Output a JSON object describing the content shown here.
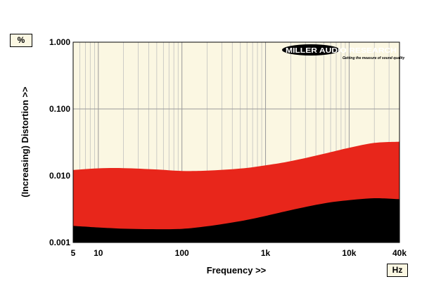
{
  "chart_data": {
    "type": "area",
    "xlabel": "Frequency >>",
    "ylabel": "(Increasing) Distortion >>",
    "y_unit": "%",
    "x_unit": "Hz",
    "x_scale": "log",
    "y_scale": "log",
    "xlim": [
      5,
      40000
    ],
    "ylim": [
      0.001,
      1.0
    ],
    "x_tick_labels": [
      {
        "value": 5,
        "label": "5"
      },
      {
        "value": 10,
        "label": "10"
      },
      {
        "value": 100,
        "label": "100"
      },
      {
        "value": 1000,
        "label": "1k"
      },
      {
        "value": 10000,
        "label": "10k"
      },
      {
        "value": 40000,
        "label": "40k"
      }
    ],
    "y_tick_labels": [
      {
        "value": 1.0,
        "label": "1.000"
      },
      {
        "value": 0.1,
        "label": "0.100"
      },
      {
        "value": 0.01,
        "label": "0.010"
      },
      {
        "value": 0.001,
        "label": "0.001"
      }
    ],
    "grid": true,
    "x": [
      5,
      10,
      20,
      50,
      100,
      200,
      500,
      1000,
      2000,
      5000,
      10000,
      20000,
      40000
    ],
    "series": [
      {
        "color": "#e8261b",
        "values": [
          0.0122,
          0.0129,
          0.013,
          0.0124,
          0.0118,
          0.0119,
          0.0128,
          0.0143,
          0.0165,
          0.0213,
          0.0262,
          0.031,
          0.0323
        ]
      },
      {
        "color": "#000000",
        "values": [
          0.00177,
          0.00168,
          0.00161,
          0.00158,
          0.0016,
          0.00175,
          0.00209,
          0.0025,
          0.00305,
          0.00385,
          0.0043,
          0.0046,
          0.00445
        ]
      }
    ]
  },
  "logo": {
    "name": "MILLER AUDIO RESEARCH",
    "tagline": "Getting the measure of sound quality"
  },
  "colors": {
    "plot_background": "#fbf7e2",
    "grid": "#b9b9b9",
    "red_band": "#e8261b",
    "black_band": "#000000"
  }
}
